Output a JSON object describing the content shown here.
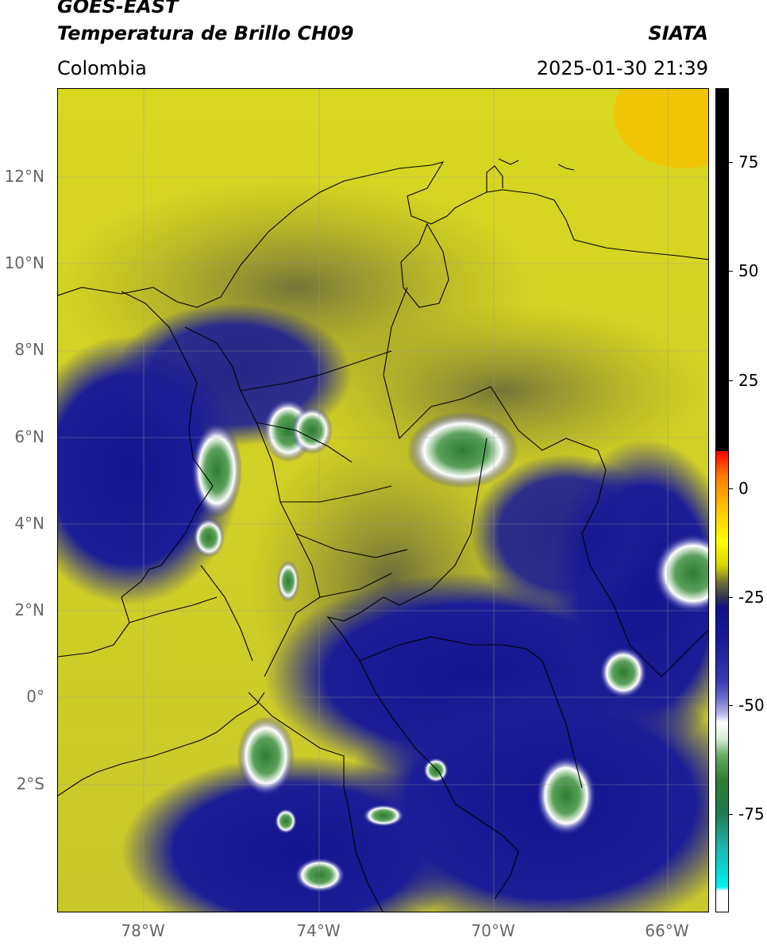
{
  "header": {
    "satellite": "GOES-EAST",
    "product": "Temperatura de Brillo CH09",
    "region": "Colombia",
    "organization": "SIATA",
    "datetime": "2025-01-30 21:39"
  },
  "map": {
    "lat_ticks": [
      "12°N",
      "10°N",
      "8°N",
      "6°N",
      "4°N",
      "2°N",
      "0°",
      "2°S"
    ],
    "lon_ticks": [
      "78°W",
      "74°W",
      "70°W",
      "66°W"
    ],
    "grid": true,
    "colors": {
      "warm": "#e8e800",
      "mid": "#6e6e3a",
      "cold": "#141490",
      "coldest": "#2e7d32"
    }
  },
  "colorbar": {
    "labels": [
      "75",
      "50",
      "25",
      "0",
      "-25",
      "-50",
      "-75"
    ],
    "range": [
      -95,
      90
    ]
  }
}
